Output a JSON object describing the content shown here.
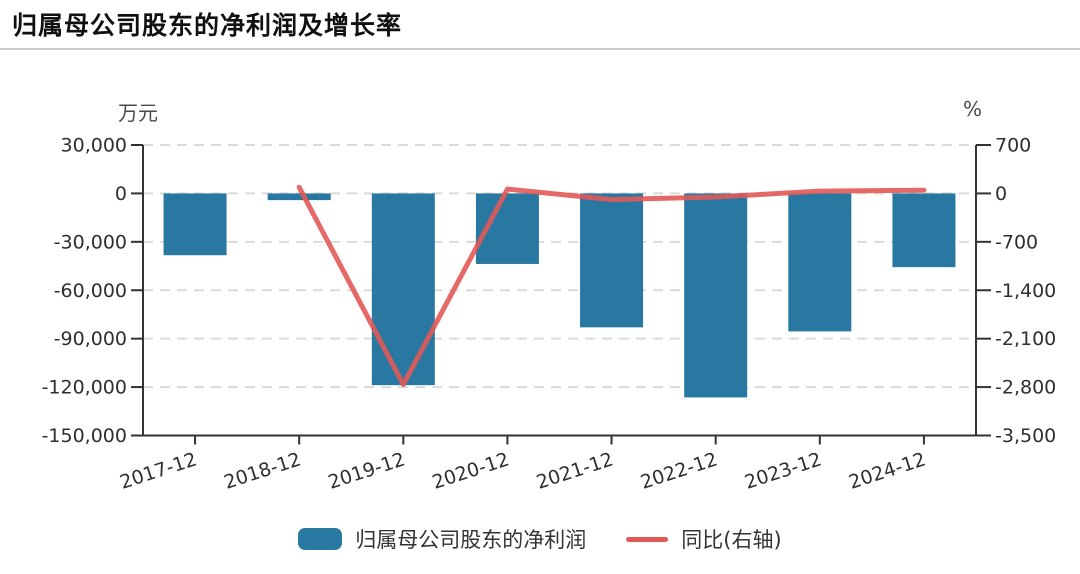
{
  "page": {
    "title": "归属母公司股东的净利润及增长率"
  },
  "chart_data": {
    "type": "bar+line combo",
    "categories": [
      "2017-12",
      "2018-12",
      "2019-12",
      "2020-12",
      "2021-12",
      "2022-12",
      "2023-12",
      "2024-12"
    ],
    "series": [
      {
        "name": "归属母公司股东的净利润",
        "type": "bar",
        "axis": "left",
        "unit": "万元",
        "color": "#2878a2",
        "values": [
          -38300,
          -4150,
          -118800,
          -43700,
          -83000,
          -126400,
          -85500,
          -45700
        ]
      },
      {
        "name": "同比(右轴)",
        "type": "line",
        "axis": "right",
        "unit": "%",
        "color": "#e15956",
        "values": [
          null,
          89.2,
          -2763.0,
          63.2,
          -89.9,
          -52.3,
          32.4,
          46.5
        ]
      }
    ],
    "left_axis": {
      "unit": "万元",
      "min": -150000,
      "max": 30000,
      "ticks": [
        30000,
        0,
        -30000,
        -60000,
        -90000,
        -120000,
        -150000
      ],
      "tick_labels": [
        "30,000",
        "0",
        "-30,000",
        "-60,000",
        "-90,000",
        "-120,000",
        "-150,000"
      ]
    },
    "right_axis": {
      "unit": "%",
      "min": -3500,
      "max": 700,
      "ticks": [
        700,
        0,
        -700,
        -1400,
        -2100,
        -2800,
        -3500
      ],
      "tick_labels": [
        "700",
        "0",
        "-700",
        "-1,400",
        "-2,100",
        "-2,800",
        "-3,500"
      ]
    },
    "grid": "horizontal dashed",
    "legend_position": "bottom"
  },
  "colors": {
    "bar": "#2878a2",
    "line": "#e15956",
    "axis": "#333333",
    "tick_text": "#2f2f2f",
    "gridline": "#dadada",
    "divider": "#cbcbce"
  }
}
